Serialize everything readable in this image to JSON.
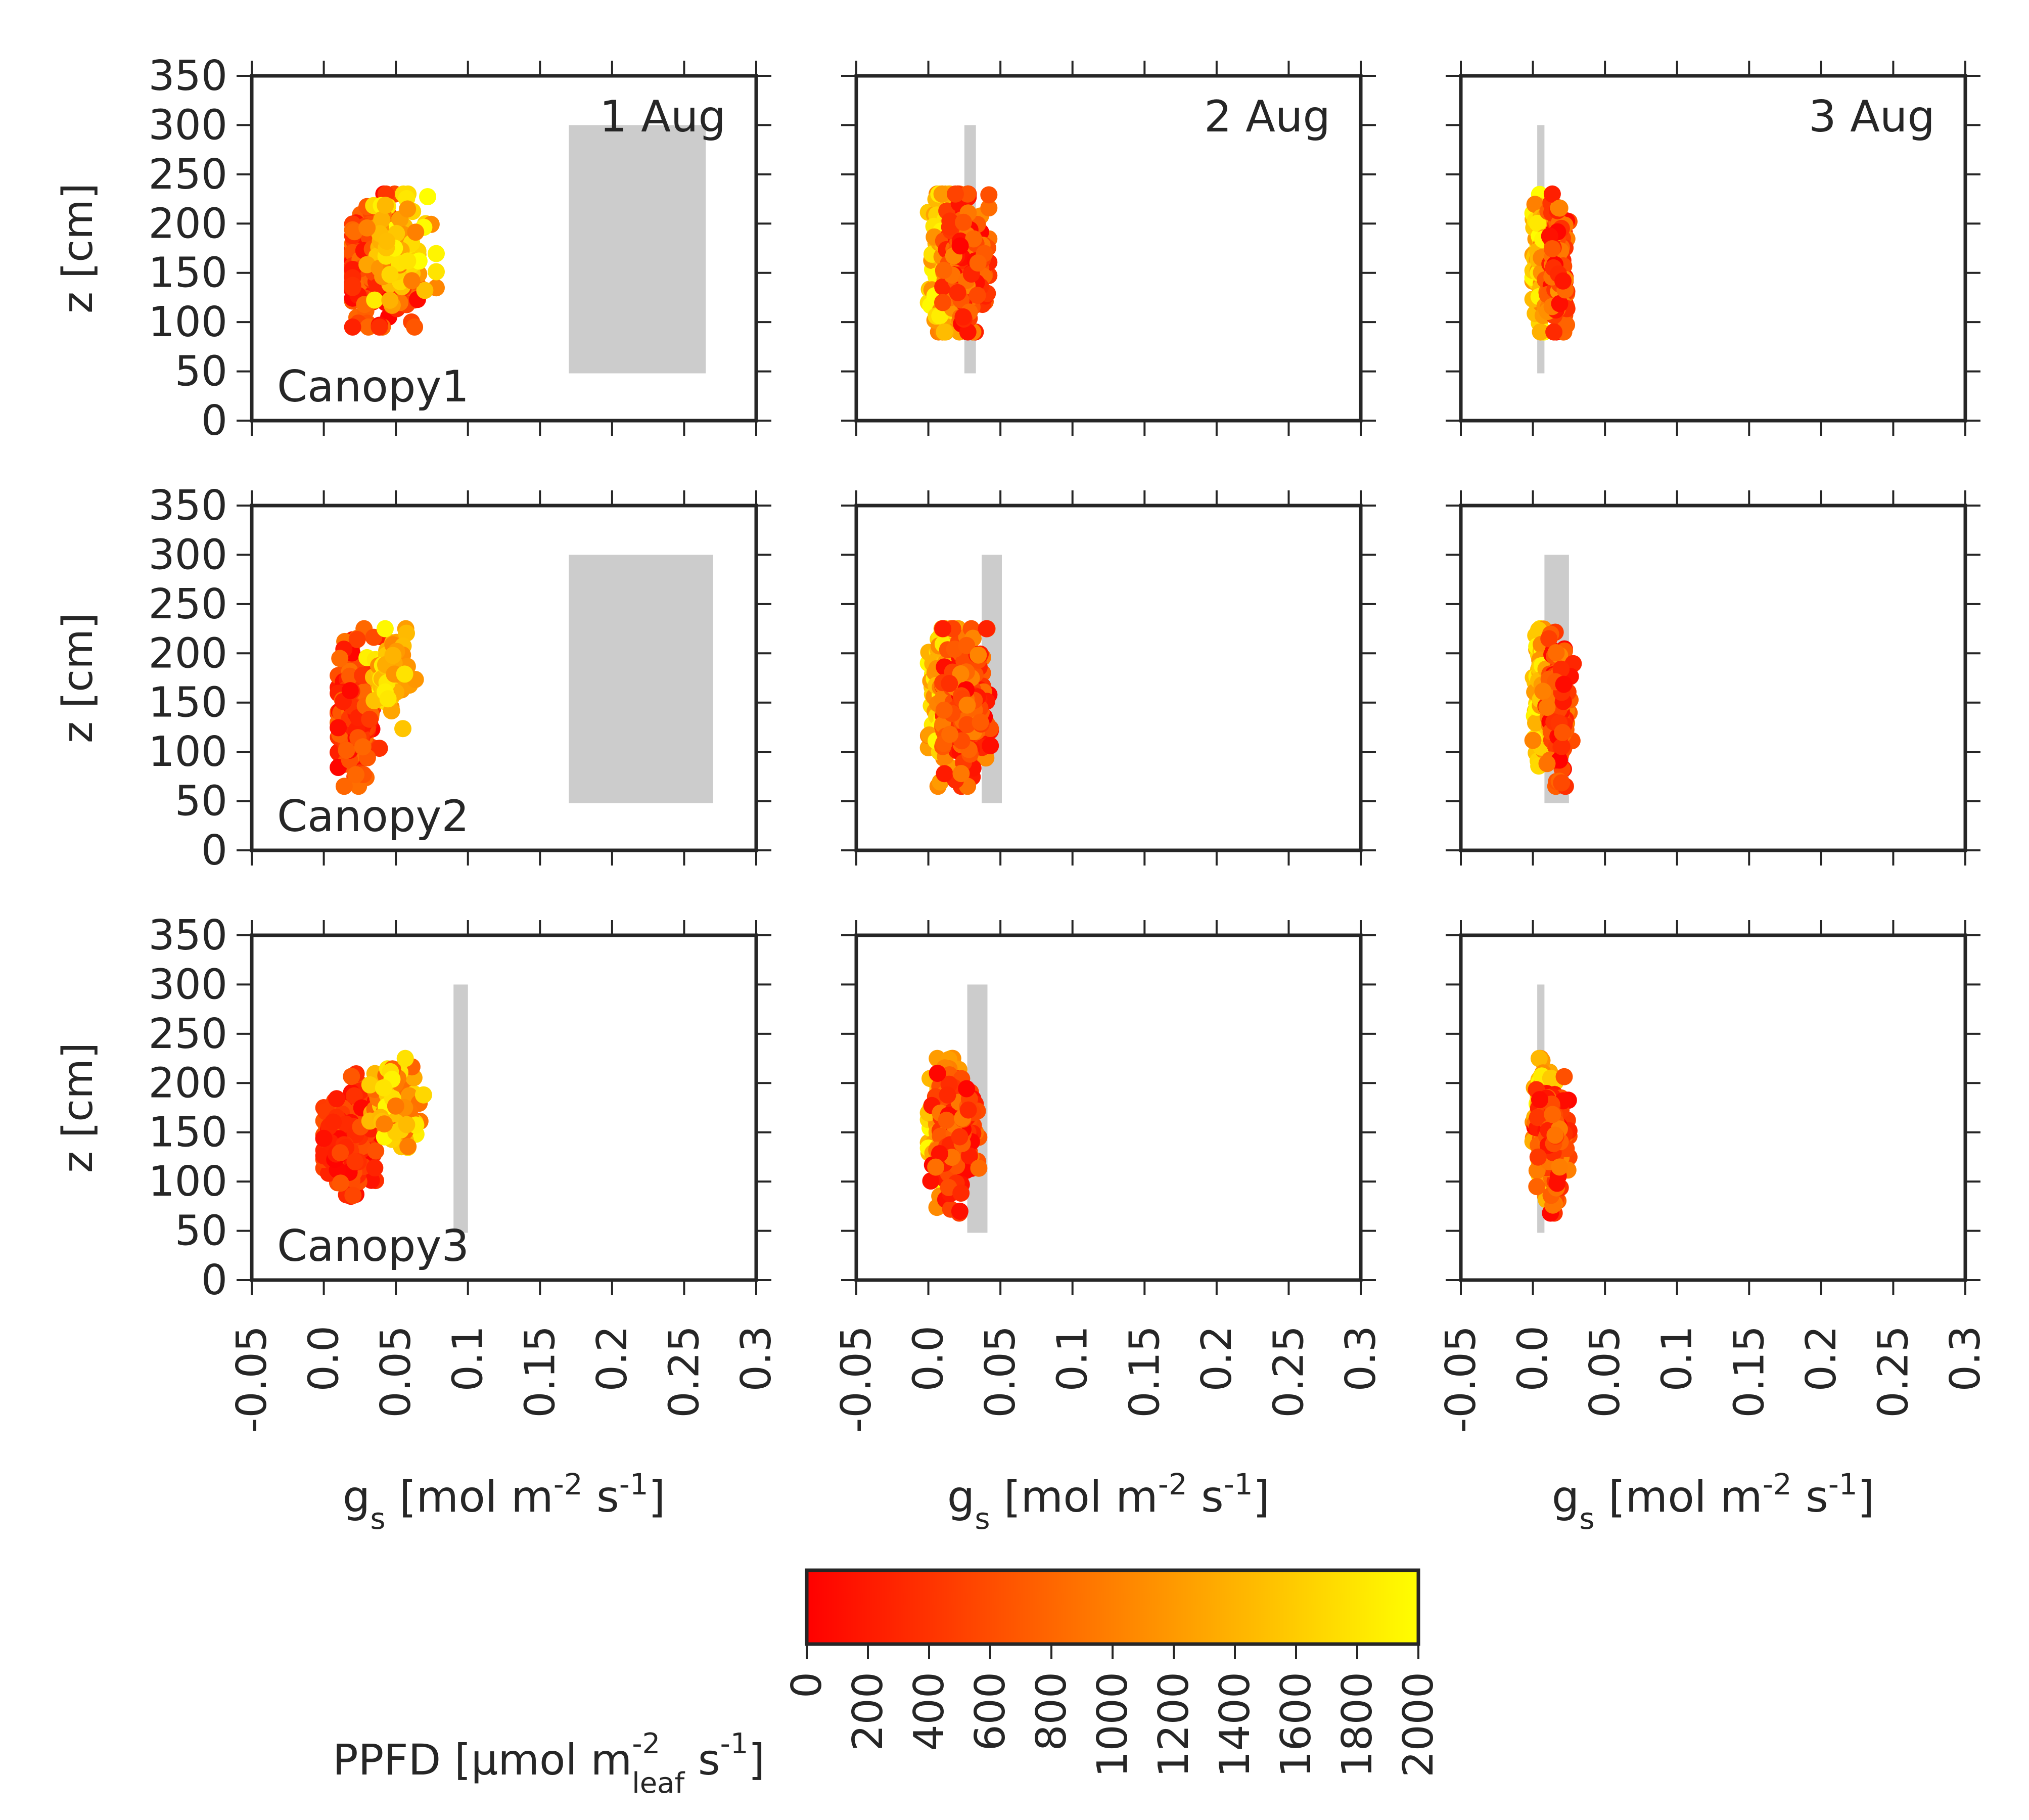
{
  "chart_data": {
    "type": "scatter",
    "grid_rows": 3,
    "grid_cols": 3,
    "xlabel": {
      "base": "g",
      "sub": "s",
      "unit_pre": " [mol m",
      "sup1": "-2",
      "unit_mid": " s",
      "sup2": "-1",
      "unit_post": "]"
    },
    "ylabel": "z [cm]",
    "xlim": [
      -0.05,
      0.3
    ],
    "ylim": [
      0,
      350
    ],
    "xtick_labels": [
      "-0.05",
      "0.0",
      "0.05",
      "0.1",
      "0.15",
      "0.2",
      "0.25",
      "0.3"
    ],
    "xticks": [
      -0.05,
      0.0,
      0.05,
      0.1,
      0.15,
      0.2,
      0.25,
      0.3
    ],
    "ytick_labels": [
      "0",
      "50",
      "100",
      "150",
      "200",
      "250",
      "300",
      "350"
    ],
    "yticks": [
      0,
      50,
      100,
      150,
      200,
      250,
      300,
      350
    ],
    "dates": [
      "1 Aug",
      "2 Aug",
      "3 Aug"
    ],
    "canopies": [
      "Canopy1",
      "Canopy2",
      "Canopy3"
    ],
    "colorbar": {
      "label": {
        "main": "PPFD [μmol m",
        "sup": "-2",
        "sub": "leaf",
        "post": " s",
        "sup2": "-1",
        "close": "]"
      },
      "range": [
        0,
        2000
      ],
      "tick_labels": [
        "0",
        "200",
        "400",
        "600",
        "800",
        "1000",
        "1200",
        "1400",
        "1600",
        "1800",
        "2000"
      ],
      "ticks": [
        0,
        200,
        400,
        600,
        800,
        1000,
        1200,
        1400,
        1600,
        1800,
        2000
      ],
      "colors": [
        "#ff0000",
        "#ff8000",
        "#ffff00"
      ]
    },
    "band_color": "#cccccc",
    "panels": [
      {
        "row": 0,
        "col": 0,
        "band": {
          "x": [
            0.17,
            0.265
          ],
          "y": [
            48,
            300
          ]
        },
        "clusters": [
          {
            "cx": 0.035,
            "cy": 160,
            "sx": 0.016,
            "sy": 30,
            "n": 200,
            "ppfd": [
              0,
              900
            ],
            "xr": [
              0.02,
              0.065
            ],
            "yr": [
              95,
              230
            ]
          },
          {
            "cx": 0.055,
            "cy": 175,
            "sx": 0.01,
            "sy": 25,
            "n": 90,
            "ppfd": [
              900,
              2000
            ],
            "xr": [
              0.03,
              0.078
            ],
            "yr": [
              95,
              230
            ]
          }
        ]
      },
      {
        "row": 0,
        "col": 1,
        "band": {
          "x": [
            0.025,
            0.033
          ],
          "y": [
            48,
            300
          ]
        },
        "clusters": [
          {
            "cx": 0.012,
            "cy": 160,
            "sx": 0.006,
            "sy": 35,
            "n": 160,
            "ppfd": [
              1000,
              2000
            ],
            "xr": [
              0.0,
              0.025
            ],
            "yr": [
              90,
              230
            ]
          },
          {
            "cx": 0.026,
            "cy": 160,
            "sx": 0.007,
            "sy": 35,
            "n": 180,
            "ppfd": [
              0,
              1100
            ],
            "xr": [
              0.01,
              0.042
            ],
            "yr": [
              90,
              230
            ]
          }
        ]
      },
      {
        "row": 0,
        "col": 2,
        "band": {
          "x": [
            0.003,
            0.008
          ],
          "y": [
            48,
            300
          ]
        },
        "clusters": [
          {
            "cx": 0.005,
            "cy": 165,
            "sx": 0.003,
            "sy": 33,
            "n": 130,
            "ppfd": [
              1000,
              2000
            ],
            "xr": [
              0.0,
              0.013
            ],
            "yr": [
              90,
              230
            ]
          },
          {
            "cx": 0.017,
            "cy": 160,
            "sx": 0.004,
            "sy": 33,
            "n": 160,
            "ppfd": [
              0,
              1200
            ],
            "xr": [
              0.005,
              0.025
            ],
            "yr": [
              90,
              230
            ]
          }
        ]
      },
      {
        "row": 1,
        "col": 0,
        "band": {
          "x": [
            0.17,
            0.27
          ],
          "y": [
            48,
            300
          ]
        },
        "clusters": [
          {
            "cx": 0.022,
            "cy": 140,
            "sx": 0.007,
            "sy": 32,
            "n": 200,
            "ppfd": [
              0,
              900
            ],
            "xr": [
              0.01,
              0.05
            ],
            "yr": [
              65,
              225
            ]
          },
          {
            "cx": 0.045,
            "cy": 175,
            "sx": 0.007,
            "sy": 20,
            "n": 80,
            "ppfd": [
              1000,
              2000
            ],
            "xr": [
              0.03,
              0.065
            ],
            "yr": [
              110,
              225
            ]
          }
        ]
      },
      {
        "row": 1,
        "col": 1,
        "band": {
          "x": [
            0.037,
            0.051
          ],
          "y": [
            48,
            300
          ]
        },
        "clusters": [
          {
            "cx": 0.012,
            "cy": 165,
            "sx": 0.006,
            "sy": 33,
            "n": 150,
            "ppfd": [
              1000,
              2000
            ],
            "xr": [
              0.0,
              0.028
            ],
            "yr": [
              65,
              225
            ]
          },
          {
            "cx": 0.026,
            "cy": 145,
            "sx": 0.008,
            "sy": 35,
            "n": 200,
            "ppfd": [
              0,
              1100
            ],
            "xr": [
              0.01,
              0.043
            ],
            "yr": [
              65,
              225
            ]
          }
        ]
      },
      {
        "row": 1,
        "col": 2,
        "band": {
          "x": [
            0.008,
            0.025
          ],
          "y": [
            48,
            300
          ]
        },
        "clusters": [
          {
            "cx": 0.006,
            "cy": 165,
            "sx": 0.003,
            "sy": 30,
            "n": 130,
            "ppfd": [
              1000,
              2000
            ],
            "xr": [
              0.0,
              0.015
            ],
            "yr": [
              65,
              225
            ]
          },
          {
            "cx": 0.018,
            "cy": 145,
            "sx": 0.004,
            "sy": 35,
            "n": 170,
            "ppfd": [
              0,
              1100
            ],
            "xr": [
              0.007,
              0.028
            ],
            "yr": [
              65,
              225
            ]
          }
        ]
      },
      {
        "row": 2,
        "col": 0,
        "band": {
          "x": [
            0.09,
            0.1
          ],
          "y": [
            48,
            300
          ]
        },
        "clusters": [
          {
            "cx": 0.015,
            "cy": 140,
            "sx": 0.01,
            "sy": 22,
            "n": 240,
            "ppfd": [
              0,
              700
            ],
            "xr": [
              0.0,
              0.045
            ],
            "yr": [
              68,
              225
            ]
          },
          {
            "cx": 0.05,
            "cy": 175,
            "sx": 0.008,
            "sy": 25,
            "n": 100,
            "ppfd": [
              700,
              2000
            ],
            "xr": [
              0.032,
              0.072
            ],
            "yr": [
              95,
              225
            ]
          }
        ]
      },
      {
        "row": 2,
        "col": 1,
        "band": {
          "x": [
            0.027,
            0.041
          ],
          "y": [
            48,
            300
          ]
        },
        "clusters": [
          {
            "cx": 0.012,
            "cy": 165,
            "sx": 0.005,
            "sy": 30,
            "n": 130,
            "ppfd": [
              1000,
              2000
            ],
            "xr": [
              0.0,
              0.025
            ],
            "yr": [
              68,
              225
            ]
          },
          {
            "cx": 0.02,
            "cy": 145,
            "sx": 0.007,
            "sy": 28,
            "n": 190,
            "ppfd": [
              0,
              1000
            ],
            "xr": [
              0.0,
              0.035
            ],
            "yr": [
              68,
              225
            ]
          }
        ]
      },
      {
        "row": 2,
        "col": 2,
        "band": {
          "x": [
            0.003,
            0.008
          ],
          "y": [
            48,
            300
          ]
        },
        "clusters": [
          {
            "cx": 0.007,
            "cy": 165,
            "sx": 0.003,
            "sy": 30,
            "n": 130,
            "ppfd": [
              1000,
              2000
            ],
            "xr": [
              0.0,
              0.016
            ],
            "yr": [
              68,
              225
            ]
          },
          {
            "cx": 0.014,
            "cy": 145,
            "sx": 0.005,
            "sy": 28,
            "n": 180,
            "ppfd": [
              0,
              1100
            ],
            "xr": [
              0.0,
              0.025
            ],
            "yr": [
              68,
              225
            ]
          }
        ]
      }
    ]
  }
}
